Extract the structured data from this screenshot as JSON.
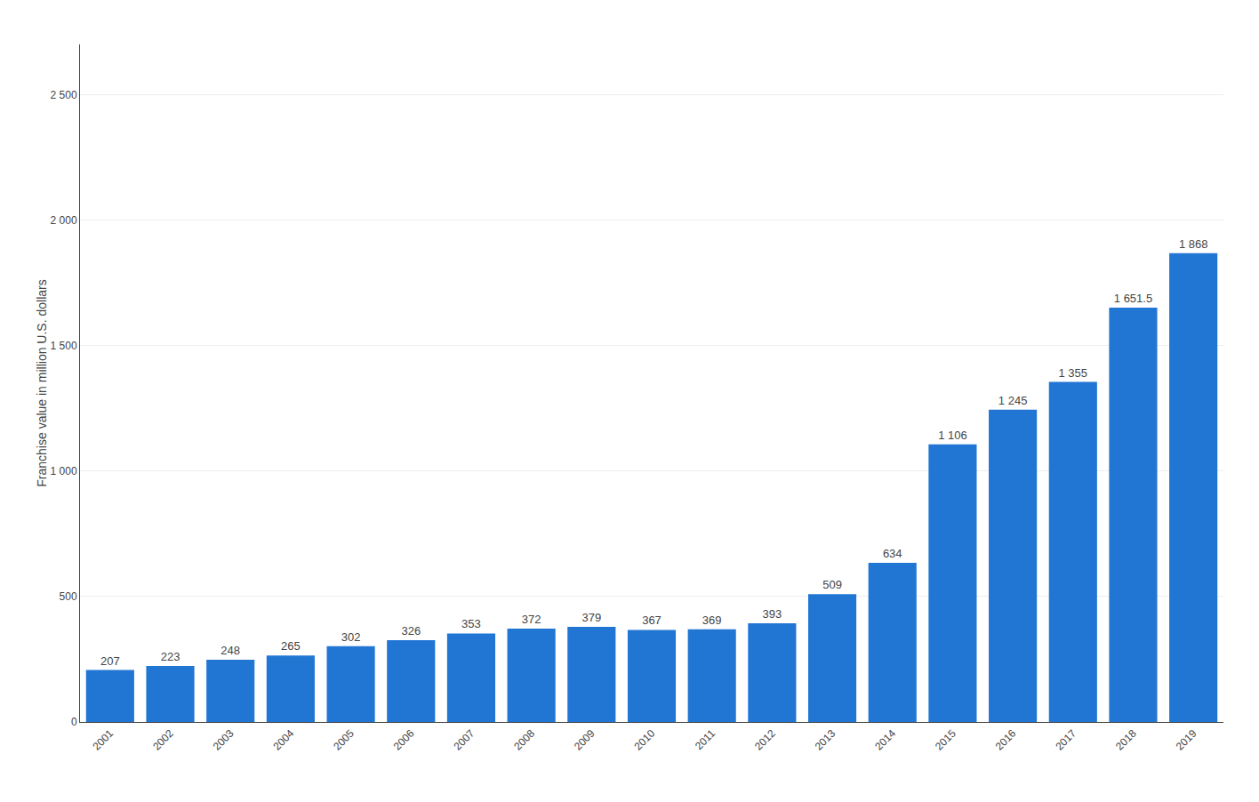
{
  "chart_data": {
    "type": "bar",
    "ylabel": "Franchise value in million U.S. dollars",
    "categories": [
      "2001",
      "2002",
      "2003",
      "2004",
      "2005",
      "2006",
      "2007",
      "2008",
      "2009",
      "2010",
      "2011",
      "2012",
      "2013",
      "2014",
      "2015",
      "2016",
      "2017",
      "2018",
      "2019"
    ],
    "values": [
      207,
      223,
      248,
      265,
      302,
      326,
      353,
      372,
      379,
      367,
      369,
      393,
      509,
      634,
      1106,
      1245,
      1355,
      1651.5,
      1868
    ],
    "value_labels": [
      "207",
      "223",
      "248",
      "265",
      "302",
      "326",
      "353",
      "372",
      "379",
      "367",
      "369",
      "393",
      "509",
      "634",
      "1 106",
      "1 245",
      "1 355",
      "1 651.5",
      "1 868"
    ],
    "color": "#2176d4",
    "ylim": [
      0,
      2700
    ],
    "yticks": [
      0,
      500,
      {
        "value": 1000,
        "label": "1 000"
      },
      {
        "value": 1500,
        "label": "1 500"
      },
      {
        "value": 2000,
        "label": "2 000"
      },
      {
        "value": 2500,
        "label": "2 500"
      }
    ],
    "grid": true,
    "data_labels": true
  }
}
